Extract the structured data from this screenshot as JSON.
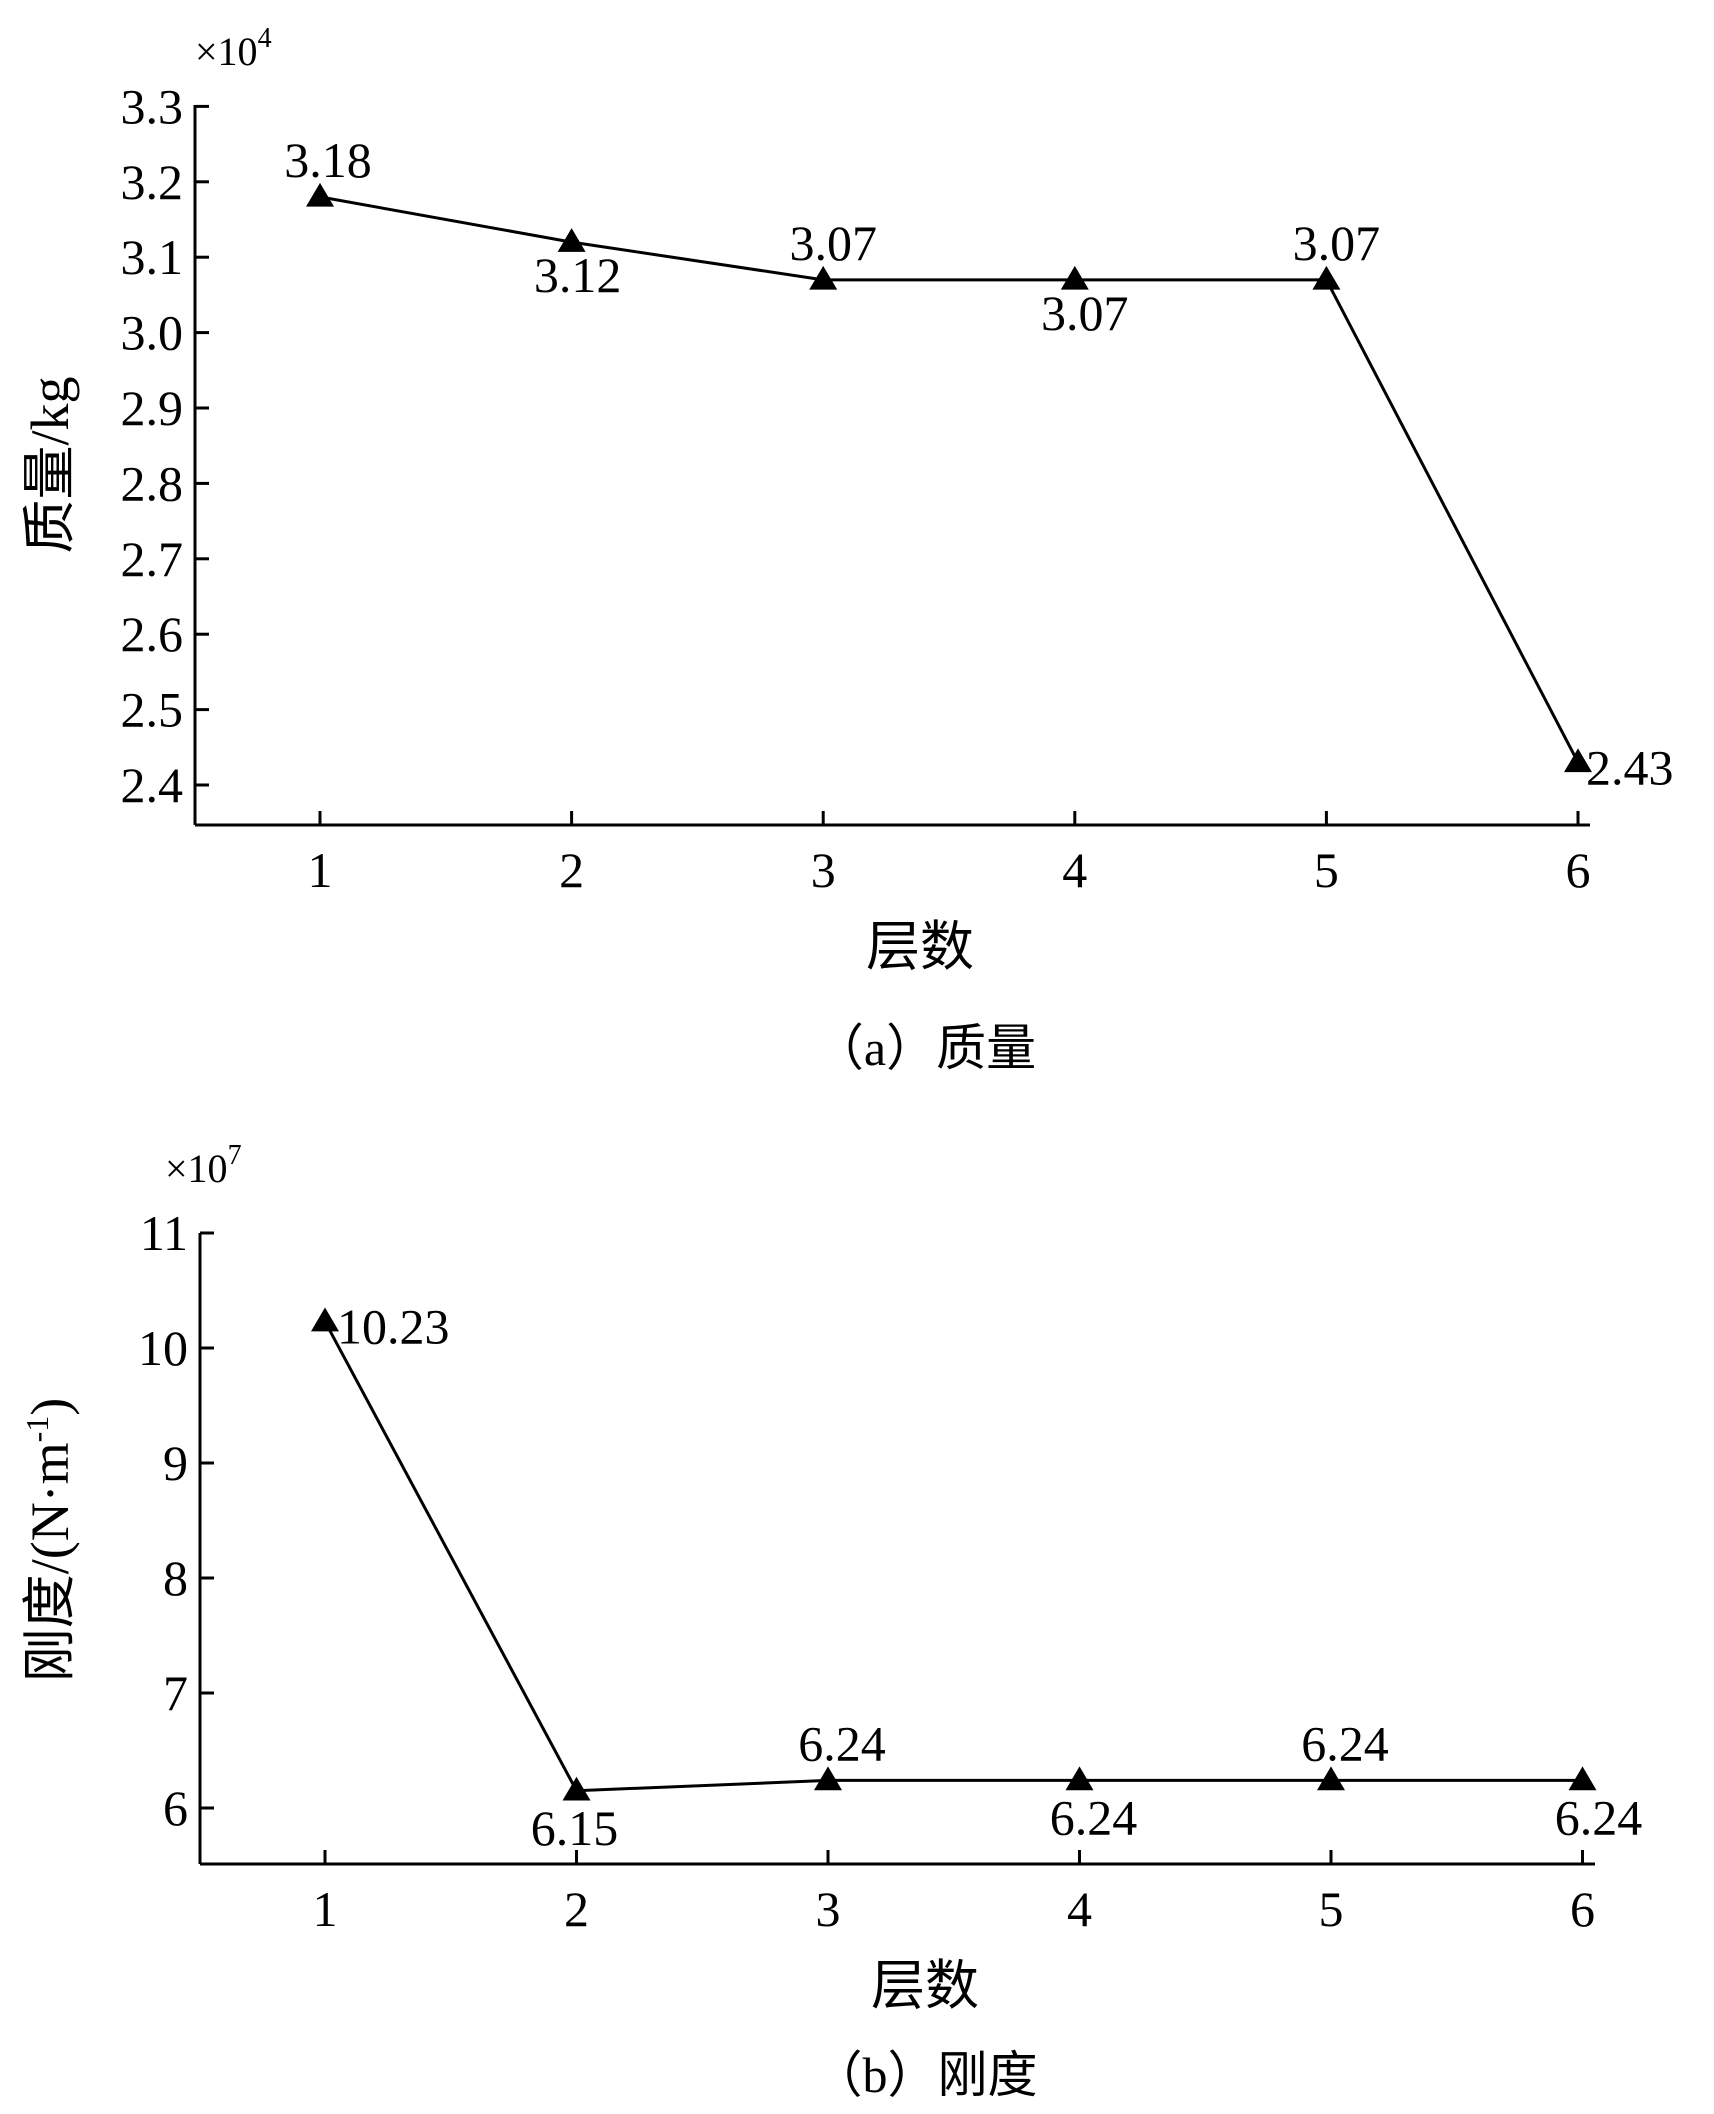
{
  "chart_data": [
    {
      "type": "line",
      "multiplier": "×10",
      "multiplier_exp": "4",
      "xlabel": "层数",
      "ylabel": "质量/kg",
      "caption": "（a）质量",
      "categories": [
        "1",
        "2",
        "3",
        "4",
        "5",
        "6"
      ],
      "ylim": [
        2.35,
        3.3
      ],
      "yticks": [
        "2.4",
        "2.5",
        "2.6",
        "2.7",
        "2.8",
        "2.9",
        "3.0",
        "3.1",
        "3.2",
        "3.3"
      ],
      "series": [
        {
          "values": [
            3.18,
            3.12,
            3.07,
            3.07,
            3.07,
            2.43
          ],
          "labels": [
            "3.18",
            "3.12",
            "3.07",
            "3.07",
            "3.07",
            "2.43"
          ],
          "marker": "triangle"
        }
      ],
      "grid": false
    },
    {
      "type": "line",
      "multiplier": "×10",
      "multiplier_exp": "7",
      "xlabel": "层数",
      "ylabel": "刚度/(N·m",
      "ylabel_sup": "-1",
      "ylabel_tail": ")",
      "caption": "（b）刚度",
      "categories": [
        "1",
        "2",
        "3",
        "4",
        "5",
        "6"
      ],
      "ylim": [
        5.5,
        11
      ],
      "yticks": [
        "6",
        "7",
        "8",
        "9",
        "10",
        "11"
      ],
      "series": [
        {
          "values": [
            10.23,
            6.15,
            6.24,
            6.24,
            6.24,
            6.24
          ],
          "labels": [
            "10.23",
            "6.15",
            "6.24",
            "6.24",
            "6.24",
            "6.24"
          ],
          "marker": "triangle"
        }
      ],
      "grid": false
    }
  ]
}
